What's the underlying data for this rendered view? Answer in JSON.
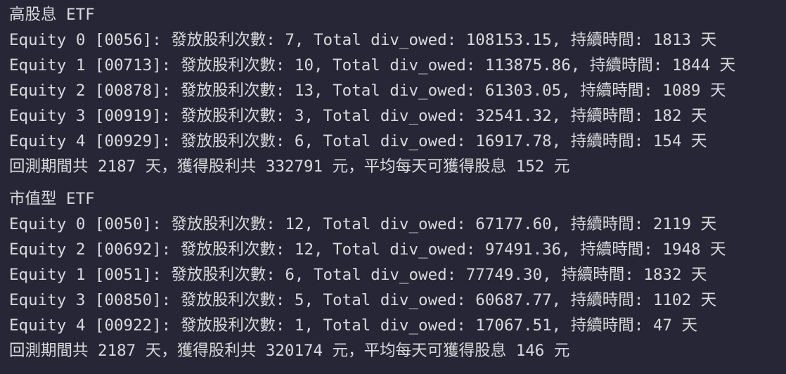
{
  "sections": [
    {
      "title": "高股息 ETF",
      "rows": [
        "Equity 0 [0056]: 發放股利次數: 7, Total div_owed: 108153.15, 持續時間: 1813 天",
        "Equity 1 [00713]: 發放股利次數: 10, Total div_owed: 113875.86, 持續時間: 1844 天",
        "Equity 2 [00878]: 發放股利次數: 13, Total div_owed: 61303.05, 持續時間: 1089 天",
        "Equity 3 [00919]: 發放股利次數: 3, Total div_owed: 32541.32, 持續時間: 182 天",
        "Equity 4 [00929]: 發放股利次數: 6, Total div_owed: 16917.78, 持續時間: 154 天"
      ],
      "summary": "回測期間共 2187 天，獲得股利共 332791 元，平均每天可獲得股息 152 元"
    },
    {
      "title": "市值型 ETF",
      "rows": [
        "Equity 0 [0050]: 發放股利次數: 12, Total div_owed: 67177.60, 持續時間: 2119 天",
        "Equity 2 [00692]: 發放股利次數: 12, Total div_owed: 97491.36, 持續時間: 1948 天",
        "Equity 1 [0051]: 發放股利次數: 6, Total div_owed: 77749.30, 持續時間: 1832 天",
        "Equity 3 [00850]: 發放股利次數: 5, Total div_owed: 60687.77, 持續時間: 1102 天",
        "Equity 4 [00922]: 發放股利次數: 1, Total div_owed: 17067.51, 持續時間: 47 天"
      ],
      "summary": "回測期間共 2187 天，獲得股利共 320174 元，平均每天可獲得股息 146 元"
    }
  ]
}
